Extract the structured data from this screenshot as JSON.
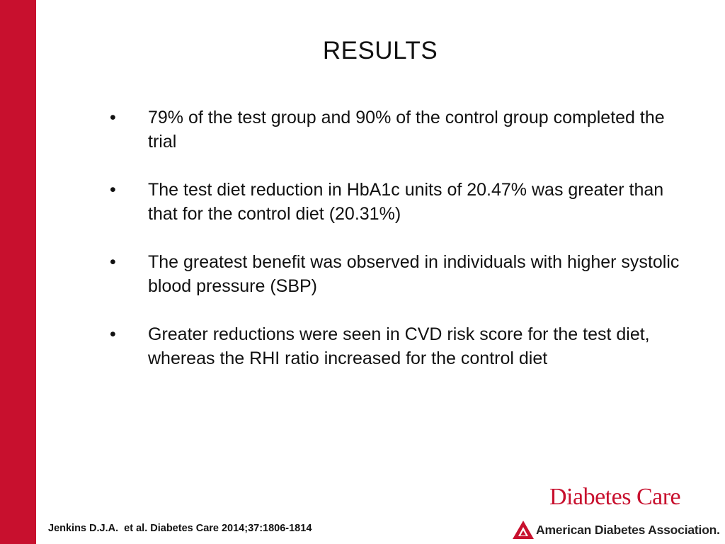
{
  "colors": {
    "accent": "#c8102e",
    "text": "#111111"
  },
  "slide": {
    "title": "RESULTS",
    "bullets": [
      {
        "marker": "•",
        "text": "79% of the test group and 90% of the control group completed the trial"
      },
      {
        "marker": "•",
        "text": "The test diet reduction in HbA1c units of 20.47% was greater than that for the control diet (20.31%)"
      },
      {
        "marker": "•",
        "text": "The greatest benefit was observed in individuals with higher systolic blood pressure (SBP)"
      },
      {
        "marker": "•",
        "text": "Greater reductions were seen in CVD risk score for the test diet, whereas the RHI ratio increased for the control diet"
      }
    ],
    "citation": "Jenkins D.J.A.  et al. Diabetes Care 2014;37:1806-1814"
  },
  "branding": {
    "journal": "Diabetes Care",
    "association": "American Diabetes Association.",
    "association_icon": "ada-triangle-icon"
  }
}
